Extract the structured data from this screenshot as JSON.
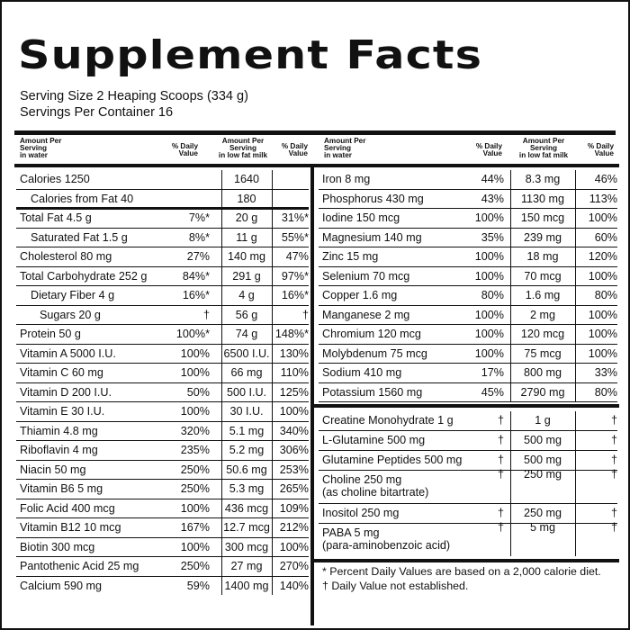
{
  "title": "Supplement Facts",
  "serving_size": "Serving Size 2 Heaping Scoops (334 g)",
  "servings_per_container": "Servings Per Container 16",
  "headers": {
    "amount_water": "Amount Per\nServing\nin water",
    "daily_value": "% Daily\nValue",
    "amount_milk": "Amount Per\nServing\nin low fat milk"
  },
  "left_rows": [
    {
      "name": "Calories  1250",
      "dv": "",
      "milk": "1640",
      "dv_milk": "",
      "indent": 0
    },
    {
      "name": "Calories from Fat  40",
      "dv": "",
      "milk": "180",
      "dv_milk": "",
      "indent": 1
    },
    {
      "name": "Total Fat  4.5 g",
      "dv": "7%*",
      "milk": "20 g",
      "dv_milk": "31%*",
      "indent": 0
    },
    {
      "name": "Saturated Fat  1.5 g",
      "dv": "8%*",
      "milk": "11 g",
      "dv_milk": "55%*",
      "indent": 1
    },
    {
      "name": "Cholesterol  80 mg",
      "dv": "27%",
      "milk": "140 mg",
      "dv_milk": "47%",
      "indent": 0
    },
    {
      "name": "Total Carbohydrate  252 g",
      "dv": "84%*",
      "milk": "291 g",
      "dv_milk": "97%*",
      "indent": 0
    },
    {
      "name": "Dietary Fiber  4 g",
      "dv": "16%*",
      "milk": "4 g",
      "dv_milk": "16%*",
      "indent": 1
    },
    {
      "name": "Sugars  20 g",
      "dv": "†",
      "milk": "56 g",
      "dv_milk": "†",
      "indent": 2
    },
    {
      "name": "Protein  50 g",
      "dv": "100%*",
      "milk": "74 g",
      "dv_milk": "148%*",
      "indent": 0
    },
    {
      "name": "Vitamin A  5000 I.U.",
      "dv": "100%",
      "milk": "6500 I.U.",
      "dv_milk": "130%",
      "indent": 0
    },
    {
      "name": "Vitamin C  60 mg",
      "dv": "100%",
      "milk": "66 mg",
      "dv_milk": "110%",
      "indent": 0
    },
    {
      "name": "Vitamin D  200 I.U.",
      "dv": "50%",
      "milk": "500 I.U.",
      "dv_milk": "125%",
      "indent": 0
    },
    {
      "name": "Vitamin E  30 I.U.",
      "dv": "100%",
      "milk": "30 I.U.",
      "dv_milk": "100%",
      "indent": 0
    },
    {
      "name": "Thiamin  4.8 mg",
      "dv": "320%",
      "milk": "5.1 mg",
      "dv_milk": "340%",
      "indent": 0
    },
    {
      "name": "Riboflavin  4 mg",
      "dv": "235%",
      "milk": "5.2 mg",
      "dv_milk": "306%",
      "indent": 0
    },
    {
      "name": "Niacin  50 mg",
      "dv": "250%",
      "milk": "50.6 mg",
      "dv_milk": "253%",
      "indent": 0
    },
    {
      "name": "Vitamin B6  5 mg",
      "dv": "250%",
      "milk": "5.3 mg",
      "dv_milk": "265%",
      "indent": 0
    },
    {
      "name": "Folic Acid  400 mcg",
      "dv": "100%",
      "milk": "436 mcg",
      "dv_milk": "109%",
      "indent": 0
    },
    {
      "name": "Vitamin B12  10 mcg",
      "dv": "167%",
      "milk": "12.7 mcg",
      "dv_milk": "212%",
      "indent": 0
    },
    {
      "name": "Biotin  300 mcg",
      "dv": "100%",
      "milk": "300 mcg",
      "dv_milk": "100%",
      "indent": 0
    },
    {
      "name": "Pantothenic Acid  25 mg",
      "dv": "250%",
      "milk": "27 mg",
      "dv_milk": "270%",
      "indent": 0
    },
    {
      "name": "Calcium  590 mg",
      "dv": "59%",
      "milk": "1400 mg",
      "dv_milk": "140%",
      "indent": 0
    }
  ],
  "right_rows": [
    {
      "name": "Iron  8 mg",
      "dv": "44%",
      "milk": "8.3 mg",
      "dv_milk": "46%"
    },
    {
      "name": "Phosphorus  430 mg",
      "dv": "43%",
      "milk": "1130 mg",
      "dv_milk": "113%"
    },
    {
      "name": "Iodine  150 mcg",
      "dv": "100%",
      "milk": "150 mcg",
      "dv_milk": "100%"
    },
    {
      "name": "Magnesium  140 mg",
      "dv": "35%",
      "milk": "239 mg",
      "dv_milk": "60%"
    },
    {
      "name": "Zinc  15 mg",
      "dv": "100%",
      "milk": "18 mg",
      "dv_milk": "120%"
    },
    {
      "name": "Selenium  70 mcg",
      "dv": "100%",
      "milk": "70 mcg",
      "dv_milk": "100%"
    },
    {
      "name": "Copper  1.6 mg",
      "dv": "80%",
      "milk": "1.6 mg",
      "dv_milk": "80%"
    },
    {
      "name": "Manganese  2 mg",
      "dv": "100%",
      "milk": "2 mg",
      "dv_milk": "100%"
    },
    {
      "name": "Chromium  120 mcg",
      "dv": "100%",
      "milk": "120 mcg",
      "dv_milk": "100%"
    },
    {
      "name": "Molybdenum  75 mcg",
      "dv": "100%",
      "milk": "75 mcg",
      "dv_milk": "100%"
    },
    {
      "name": "Sodium  410 mg",
      "dv": "17%",
      "milk": "800 mg",
      "dv_milk": "33%"
    },
    {
      "name": "Potassium  1560 mg",
      "dv": "45%",
      "milk": "2790 mg",
      "dv_milk": "80%"
    }
  ],
  "right_other_rows": [
    {
      "name": "Creatine Monohydrate  1 g",
      "name2": "",
      "dv": "†",
      "milk": "1 g",
      "dv_milk": "†"
    },
    {
      "name": "L-Glutamine  500 mg",
      "name2": "",
      "dv": "†",
      "milk": "500 mg",
      "dv_milk": "†"
    },
    {
      "name": "Glutamine Peptides  500 mg",
      "name2": "",
      "dv": "†",
      "milk": "500 mg",
      "dv_milk": "†"
    },
    {
      "name": "Choline  250 mg",
      "name2": "(as choline bitartrate)",
      "dv": "†",
      "milk": "250 mg",
      "dv_milk": "†"
    },
    {
      "name": "Inositol  250 mg",
      "name2": "",
      "dv": "†",
      "milk": "250 mg",
      "dv_milk": "†"
    },
    {
      "name": "PABA  5 mg",
      "name2": "(para-aminobenzoic acid)",
      "dv": "†",
      "milk": "5 mg",
      "dv_milk": "†"
    }
  ],
  "footnotes": [
    "* Percent Daily Values are based on a 2,000 calorie diet.",
    "† Daily Value not established."
  ]
}
